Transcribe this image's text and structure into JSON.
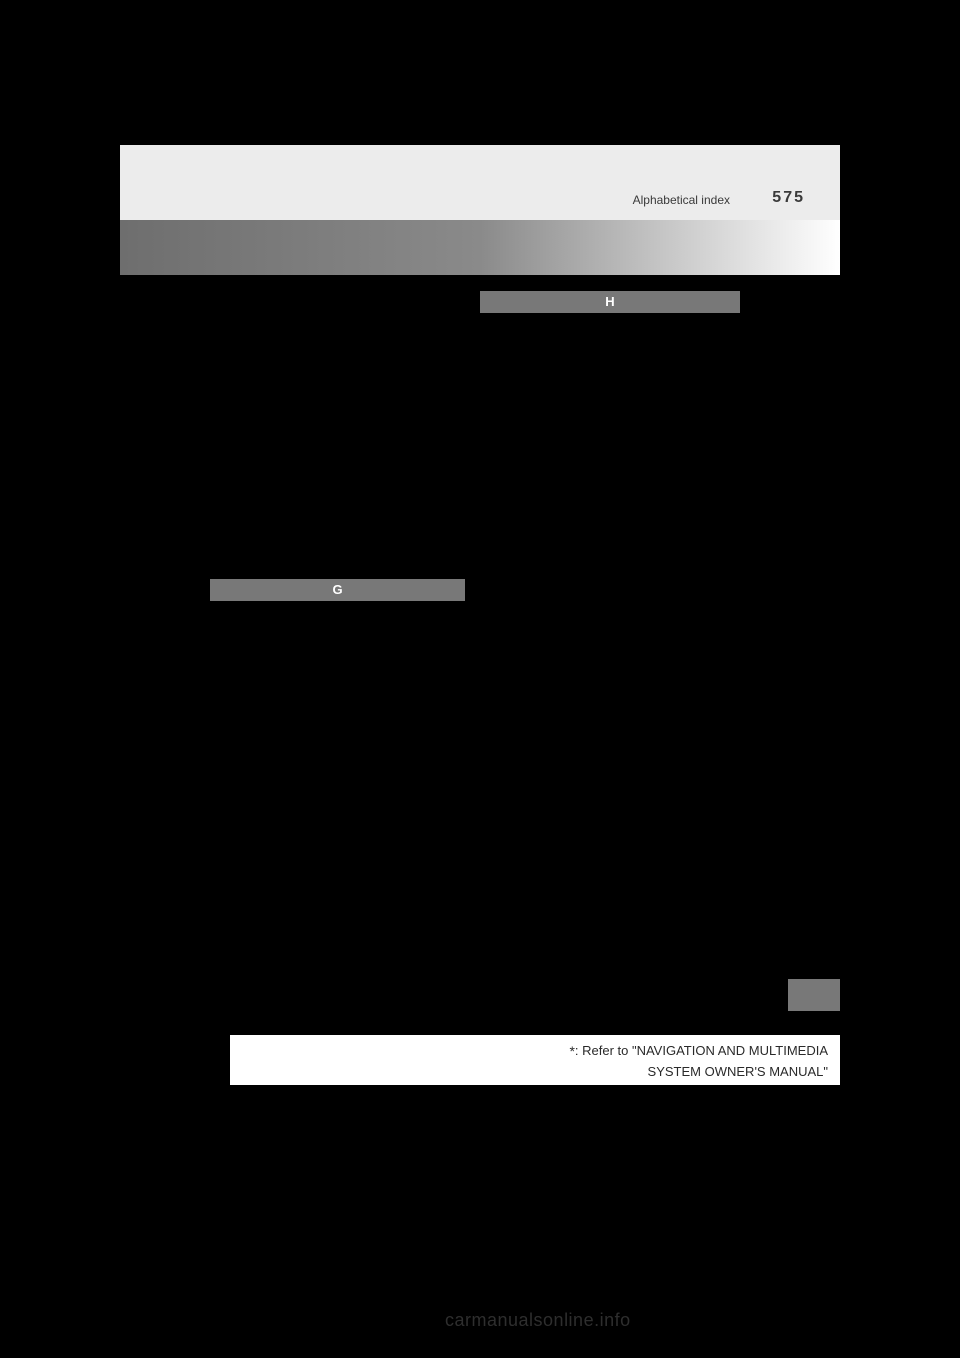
{
  "header": {
    "label": "Alphabetical index",
    "pageNumber": "575"
  },
  "sections": {
    "g": {
      "letter": "G"
    },
    "h": {
      "letter": "H"
    }
  },
  "footer": {
    "asterisk": "*",
    "line1": ": Refer to \"NAVIGATION AND MULTIMEDIA",
    "line2": "SYSTEM OWNER'S MANUAL\""
  },
  "watermark": "carmanualsonline.info",
  "colors": {
    "background": "#000000",
    "headerBar": "#ececec",
    "sectionHeader": "#787878",
    "sectionText": "#ffffff",
    "footerBg": "#ffffff",
    "text": "#3a3a3a",
    "watermark": "#2e2e2e"
  }
}
